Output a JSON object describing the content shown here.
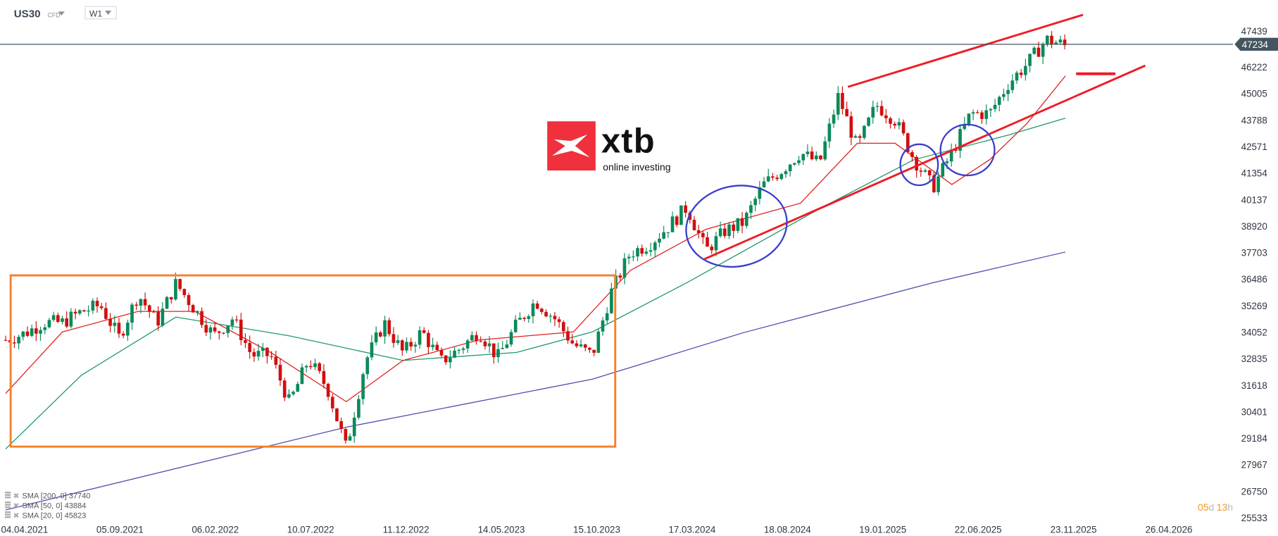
{
  "header": {
    "symbol": "US30",
    "symbol_type": "CFD",
    "interval": "W1"
  },
  "logo": {
    "brand": "xtb",
    "tagline": "online investing",
    "color": "#f0303c"
  },
  "current_price": "47234",
  "countdown": {
    "days": "05",
    "d": "d",
    "hours": "13",
    "h": "h"
  },
  "indicators": [
    {
      "label": "SMA [200, 0] 37740",
      "color": "#4b4fb0"
    },
    {
      "label": "SMA [50, 0] 43884",
      "color": "#1f9a6a"
    },
    {
      "label": "SMA [20, 0] 45823",
      "color": "#e02020"
    }
  ],
  "colors": {
    "up": "#0b8a5a",
    "down": "#d10f0f",
    "price_line": "#455560",
    "box": "#f5802a",
    "trendline": "#ee1c25",
    "ellipse": "#3a3fc8"
  },
  "chart_data": {
    "type": "candlestick",
    "timeframe": "weekly",
    "price_axis": [
      "47439",
      "46222",
      "45005",
      "43788",
      "42571",
      "41354",
      "40137",
      "38920",
      "37703",
      "36486",
      "35269",
      "34052",
      "32835",
      "31618",
      "30401",
      "29184",
      "27967",
      "26750",
      "25533"
    ],
    "date_axis": [
      "04.04.2021",
      "05.09.2021",
      "06.02.2022",
      "10.07.2022",
      "11.12.2022",
      "14.05.2023",
      "15.10.2023",
      "17.03.2024",
      "18.08.2024",
      "19.01.2025",
      "22.06.2025",
      "23.11.2025",
      "26.04.2026"
    ],
    "monthly_closes": [
      [
        "2021-03",
        33700
      ],
      [
        "2021-04",
        34000
      ],
      [
        "2021-05",
        34500
      ],
      [
        "2021-06",
        34500
      ],
      [
        "2021-07",
        35000
      ],
      [
        "2021-08",
        35300
      ],
      [
        "2021-09",
        33800
      ],
      [
        "2021-10",
        35800
      ],
      [
        "2021-11",
        34500
      ],
      [
        "2021-12",
        36300
      ],
      [
        "2022-01",
        35100
      ],
      [
        "2022-02",
        33900
      ],
      [
        "2022-03",
        34700
      ],
      [
        "2022-04",
        33000
      ],
      [
        "2022-05",
        33000
      ],
      [
        "2022-06",
        30800
      ],
      [
        "2022-07",
        32800
      ],
      [
        "2022-08",
        31500
      ],
      [
        "2022-09",
        28700
      ],
      [
        "2022-10",
        32700
      ],
      [
        "2022-11",
        34500
      ],
      [
        "2022-12",
        33100
      ],
      [
        "2023-01",
        34100
      ],
      [
        "2023-02",
        32700
      ],
      [
        "2023-03",
        33300
      ],
      [
        "2023-04",
        34100
      ],
      [
        "2023-05",
        32900
      ],
      [
        "2023-06",
        34400
      ],
      [
        "2023-07",
        35500
      ],
      [
        "2023-08",
        34700
      ],
      [
        "2023-09",
        33500
      ],
      [
        "2023-10",
        33000
      ],
      [
        "2023-11",
        35900
      ],
      [
        "2023-12",
        37700
      ],
      [
        "2024-01",
        38100
      ],
      [
        "2024-02",
        38900
      ],
      [
        "2024-03",
        39800
      ],
      [
        "2024-04",
        37800
      ],
      [
        "2024-05",
        38700
      ],
      [
        "2024-06",
        39100
      ],
      [
        "2024-07",
        40800
      ],
      [
        "2024-08",
        41500
      ],
      [
        "2024-09",
        42300
      ],
      [
        "2024-10",
        41800
      ],
      [
        "2024-11",
        44900
      ],
      [
        "2024-12",
        42500
      ],
      [
        "2025-01",
        44500
      ],
      [
        "2025-02",
        43800
      ],
      [
        "2025-03",
        42000
      ],
      [
        "2025-04",
        40700
      ],
      [
        "2025-05",
        42300
      ],
      [
        "2025-06",
        44100
      ],
      [
        "2025-07",
        44100
      ],
      [
        "2025-08",
        45500
      ],
      [
        "2025-09",
        46400
      ],
      [
        "2025-10",
        47500
      ],
      [
        "2025-11",
        47234
      ]
    ],
    "sma200": [
      [
        "2021-03",
        25900
      ],
      [
        "2022-09",
        29700
      ],
      [
        "2023-10",
        31900
      ],
      [
        "2024-06",
        34040
      ],
      [
        "2025-04",
        36330
      ],
      [
        "2025-11",
        37740
      ]
    ],
    "sma50": [
      [
        "2021-03",
        28700
      ],
      [
        "2021-07",
        32080
      ],
      [
        "2021-12",
        34750
      ],
      [
        "2022-06",
        33890
      ],
      [
        "2022-12",
        32760
      ],
      [
        "2023-06",
        33130
      ],
      [
        "2023-10",
        34070
      ],
      [
        "2024-03",
        36330
      ],
      [
        "2024-10",
        39720
      ],
      [
        "2025-03",
        41980
      ],
      [
        "2025-08",
        43110
      ],
      [
        "2025-11",
        43884
      ]
    ],
    "sma20": [
      [
        "2021-03",
        31250
      ],
      [
        "2021-06",
        34070
      ],
      [
        "2021-10",
        35010
      ],
      [
        "2022-01",
        35010
      ],
      [
        "2022-05",
        33130
      ],
      [
        "2022-09",
        30870
      ],
      [
        "2022-12",
        32760
      ],
      [
        "2023-04",
        33700
      ],
      [
        "2023-09",
        34070
      ],
      [
        "2023-12",
        36890
      ],
      [
        "2024-04",
        38780
      ],
      [
        "2024-09",
        39980
      ],
      [
        "2024-12",
        42730
      ],
      [
        "2025-02",
        42730
      ],
      [
        "2025-05",
        40840
      ],
      [
        "2025-07",
        41980
      ],
      [
        "2025-09",
        43670
      ],
      [
        "2025-11",
        45823
      ]
    ]
  }
}
